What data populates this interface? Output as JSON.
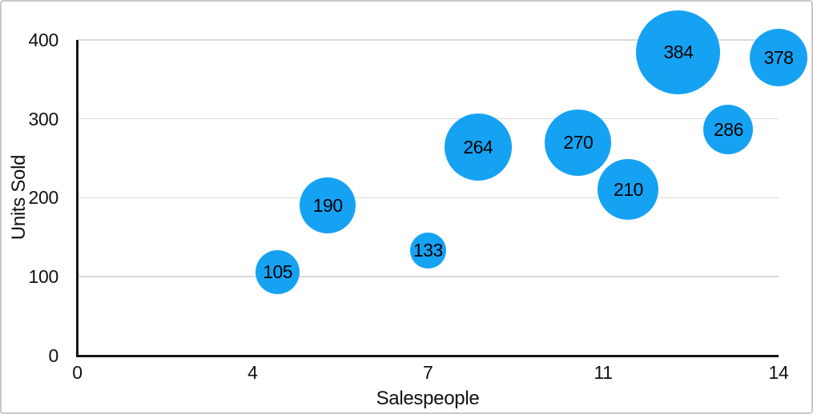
{
  "chart_data": {
    "type": "scatter",
    "variant": "bubble",
    "xlabel": "Salespeople",
    "ylabel": "Units Sold",
    "xlim": [
      0,
      14
    ],
    "ylim": [
      0,
      400
    ],
    "x_tick_labels": [
      "0",
      "4",
      "7",
      "11",
      "14"
    ],
    "y_ticks": [
      {
        "value": 0,
        "label": "0"
      },
      {
        "value": 100,
        "label": "100"
      },
      {
        "value": 200,
        "label": "200"
      },
      {
        "value": 300,
        "label": "300"
      },
      {
        "value": 400,
        "label": "400"
      }
    ],
    "grid": "horizontal",
    "legend": "none",
    "points": [
      {
        "x": 4,
        "y": 105,
        "label": "105",
        "radius_px": 27.5
      },
      {
        "x": 5,
        "y": 190,
        "label": "190",
        "radius_px": 35
      },
      {
        "x": 7,
        "y": 133,
        "label": "133",
        "radius_px": 22.5
      },
      {
        "x": 8,
        "y": 264,
        "label": "264",
        "radius_px": 42
      },
      {
        "x": 10,
        "y": 270,
        "label": "270",
        "radius_px": 41.5
      },
      {
        "x": 11,
        "y": 210,
        "label": "210",
        "radius_px": 38
      },
      {
        "x": 12,
        "y": 384,
        "label": "384",
        "radius_px": 52.5
      },
      {
        "x": 13,
        "y": 286,
        "label": "286",
        "radius_px": 31
      },
      {
        "x": 14,
        "y": 378,
        "label": "378",
        "radius_px": 36
      }
    ],
    "colors": {
      "bubble": "#16A2F3",
      "bubble_label": "#000000",
      "gridline": "#d9d9d9",
      "axis_line": "#141414",
      "text": "#111111",
      "figure_border": "#c9c9c9"
    }
  }
}
